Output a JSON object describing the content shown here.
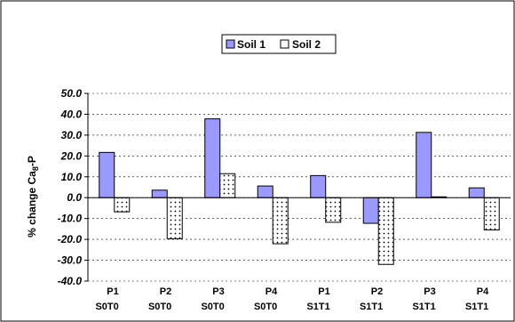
{
  "chart_data": {
    "type": "bar",
    "categories": [
      [
        "P1",
        "S0T0"
      ],
      [
        "P2",
        "S0T0"
      ],
      [
        "P3",
        "S0T0"
      ],
      [
        "P4",
        "S0T0"
      ],
      [
        "P1",
        "S1T1"
      ],
      [
        "P2",
        "S1T1"
      ],
      [
        "P3",
        "S1T1"
      ],
      [
        "P4",
        "S1T1"
      ]
    ],
    "series": [
      {
        "name": "Soil 1",
        "color": "#9999ff",
        "pattern": "solid",
        "values": [
          21.7,
          3.6,
          37.8,
          5.6,
          10.6,
          -12.3,
          31.3,
          4.7
        ]
      },
      {
        "name": "Soil 2",
        "color": "#ffffff",
        "pattern": "dotted",
        "values": [
          -6.8,
          -19.7,
          11.5,
          -22.1,
          -11.8,
          -32.0,
          0.4,
          -15.5
        ]
      }
    ],
    "ylabel_parts": [
      "% change Ca",
      "8",
      "-P"
    ],
    "ylim": [
      -40,
      50
    ],
    "yticks": [
      "50.0",
      "40.0",
      "30.0",
      "20.0",
      "10.0",
      "0.0",
      "-10.0",
      "-20.0",
      "-30.0",
      "-40.0"
    ],
    "grid": "horizontal dashed",
    "legend_position": "top-center"
  }
}
